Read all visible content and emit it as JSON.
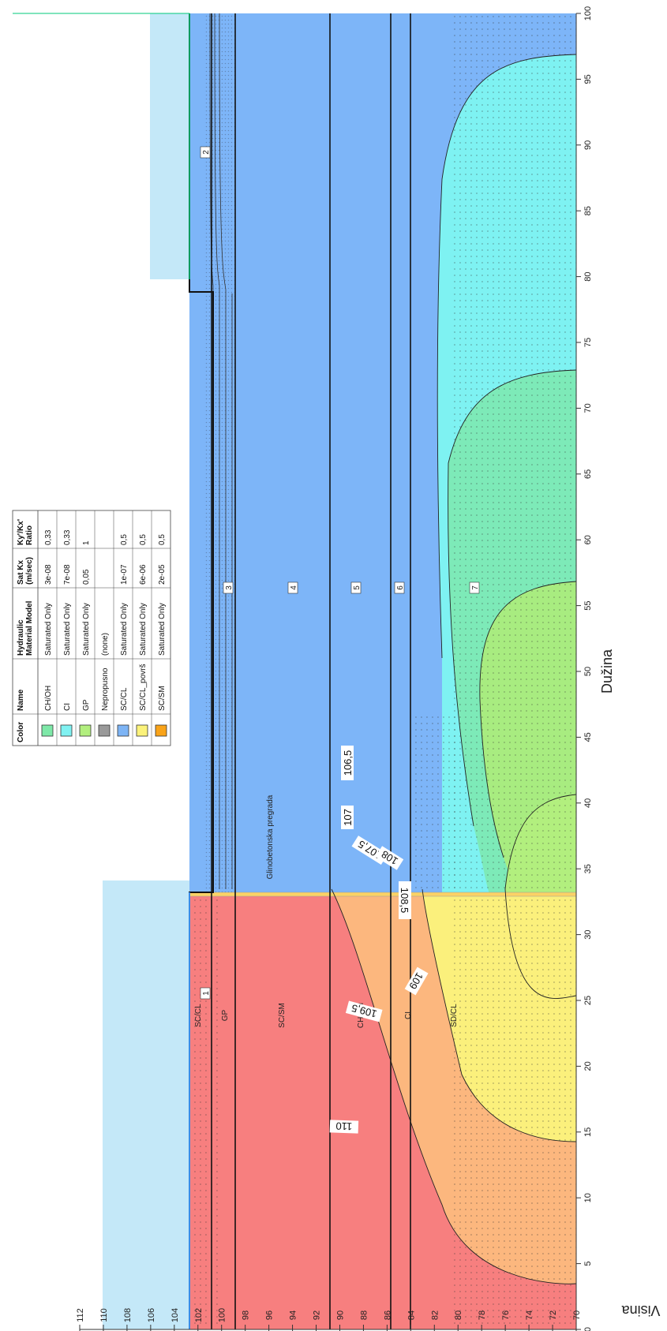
{
  "axes": {
    "x_title": "Dužina",
    "y_title": "Visina",
    "x_ticks": [
      "0",
      "5",
      "10",
      "15",
      "20",
      "25",
      "30",
      "35",
      "40",
      "45",
      "50",
      "55",
      "60",
      "65",
      "70",
      "75",
      "80",
      "85",
      "90",
      "95",
      "100"
    ],
    "y_ticks": [
      "70",
      "72",
      "74",
      "76",
      "78",
      "80",
      "82",
      "84",
      "86",
      "88",
      "90",
      "92",
      "94",
      "96",
      "98",
      "100",
      "102",
      "104",
      "106",
      "108",
      "110",
      "112"
    ]
  },
  "legend": {
    "headers": {
      "color": "Color",
      "name": "Name",
      "model": "Hydraulic Material Model",
      "satkx": "Sat Kx (m/sec)",
      "ratio": "Ky'/Kx' Ratio"
    },
    "header_lines": {
      "model": [
        "Hydraulic",
        "Material Model"
      ],
      "satkx": [
        "Sat Kx",
        "(m/sec)"
      ],
      "ratio": [
        "Ky'/Kx'",
        "Ratio"
      ]
    },
    "rows": [
      {
        "color": "#7ee8a8",
        "name": "CH/OH",
        "model": "Saturated Only",
        "satkx": "3e-08",
        "ratio": "0,33"
      },
      {
        "color": "#80f2f2",
        "name": "CI",
        "model": "Saturated Only",
        "satkx": "7e-08",
        "ratio": "0,33"
      },
      {
        "color": "#b2ef7e",
        "name": "GP",
        "model": "Saturated Only",
        "satkx": "0,05",
        "ratio": "1"
      },
      {
        "color": "#9a9a9a",
        "name": "Nepropusno",
        "model": "(none)",
        "satkx": "",
        "ratio": ""
      },
      {
        "color": "#7db4f5",
        "name": "SC/CL",
        "model": "Saturated Only",
        "satkx": "1e-07",
        "ratio": "0,5"
      },
      {
        "color": "#fbf27a",
        "name": "SC/CL_površ",
        "model": "Saturated Only",
        "satkx": "6e-06",
        "ratio": "0,5"
      },
      {
        "color": "#f9a318",
        "name": "SC/SM",
        "model": "Saturated Only",
        "satkx": "2e-05",
        "ratio": "0,5"
      }
    ]
  },
  "zone_numbers": [
    "1",
    "2",
    "3",
    "4",
    "5",
    "6",
    "7"
  ],
  "contour_labels": [
    "106,5",
    "107",
    "107,5",
    "108",
    "108,5",
    "109",
    "109,5",
    "110"
  ],
  "material_labels": [
    "SC/CL",
    "GP",
    "SC/SM",
    "CH/OH",
    "CI",
    "SD/CL",
    "Glinobetonska pregrada"
  ],
  "colors": {
    "reservoir_water": "#c4e8f8",
    "head_above_110": "#f77f7f",
    "head_109_110": "#fcb77e",
    "head_108_109": "#fbf07c",
    "head_107_108": "#a8ec80",
    "head_106_5_107": "#7deab8",
    "head_106_106_5": "#7ef2f2",
    "head_below_106": "#7db5f8",
    "boundary": "#00c87a"
  }
}
